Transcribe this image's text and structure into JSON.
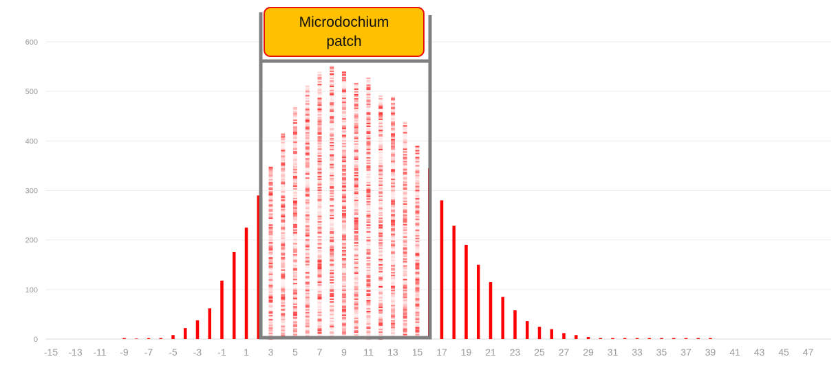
{
  "chart_data": {
    "type": "bar",
    "x": [
      -15,
      -14,
      -13,
      -12,
      -11,
      -10,
      -9,
      -8,
      -7,
      -6,
      -5,
      -4,
      -3,
      -2,
      -1,
      0,
      1,
      2,
      3,
      4,
      5,
      6,
      7,
      8,
      9,
      10,
      11,
      12,
      13,
      14,
      15,
      16,
      17,
      18,
      19,
      20,
      21,
      22,
      23,
      24,
      25,
      26,
      27,
      28,
      29,
      30,
      31,
      32,
      33,
      34,
      35,
      36,
      37,
      38,
      39,
      40,
      41,
      42,
      43,
      44,
      45,
      46,
      47
    ],
    "values": [
      0,
      0,
      0,
      0,
      0,
      0,
      2,
      1,
      2,
      2,
      8,
      22,
      38,
      62,
      118,
      176,
      225,
      290,
      348,
      415,
      468,
      512,
      540,
      553,
      540,
      517,
      528,
      492,
      490,
      440,
      390,
      345,
      280,
      229,
      190,
      150,
      115,
      85,
      58,
      36,
      25,
      20,
      12,
      8,
      4,
      2,
      2,
      2,
      2,
      2,
      2,
      2,
      2,
      2,
      2,
      0,
      0,
      0,
      0,
      0,
      0,
      0,
      0
    ],
    "xticks": [
      -15,
      -13,
      -11,
      -9,
      -7,
      -5,
      -3,
      -1,
      1,
      3,
      5,
      7,
      9,
      11,
      13,
      15,
      17,
      19,
      21,
      23,
      25,
      27,
      29,
      31,
      33,
      35,
      37,
      39,
      41,
      43,
      45,
      47
    ],
    "yticks": [
      0,
      100,
      200,
      300,
      400,
      500,
      600
    ],
    "ylim": [
      0,
      650
    ],
    "title": "",
    "xlabel": "",
    "ylabel": "",
    "grid": true,
    "legend": "none",
    "bar_color": "#FF0000",
    "patch_range": [
      3,
      15
    ],
    "annotation": {
      "label": "Microdochium patch",
      "fill_color": "#FFC000",
      "border_color": "#E8120C",
      "frame_color": "#7F7F7F"
    }
  }
}
